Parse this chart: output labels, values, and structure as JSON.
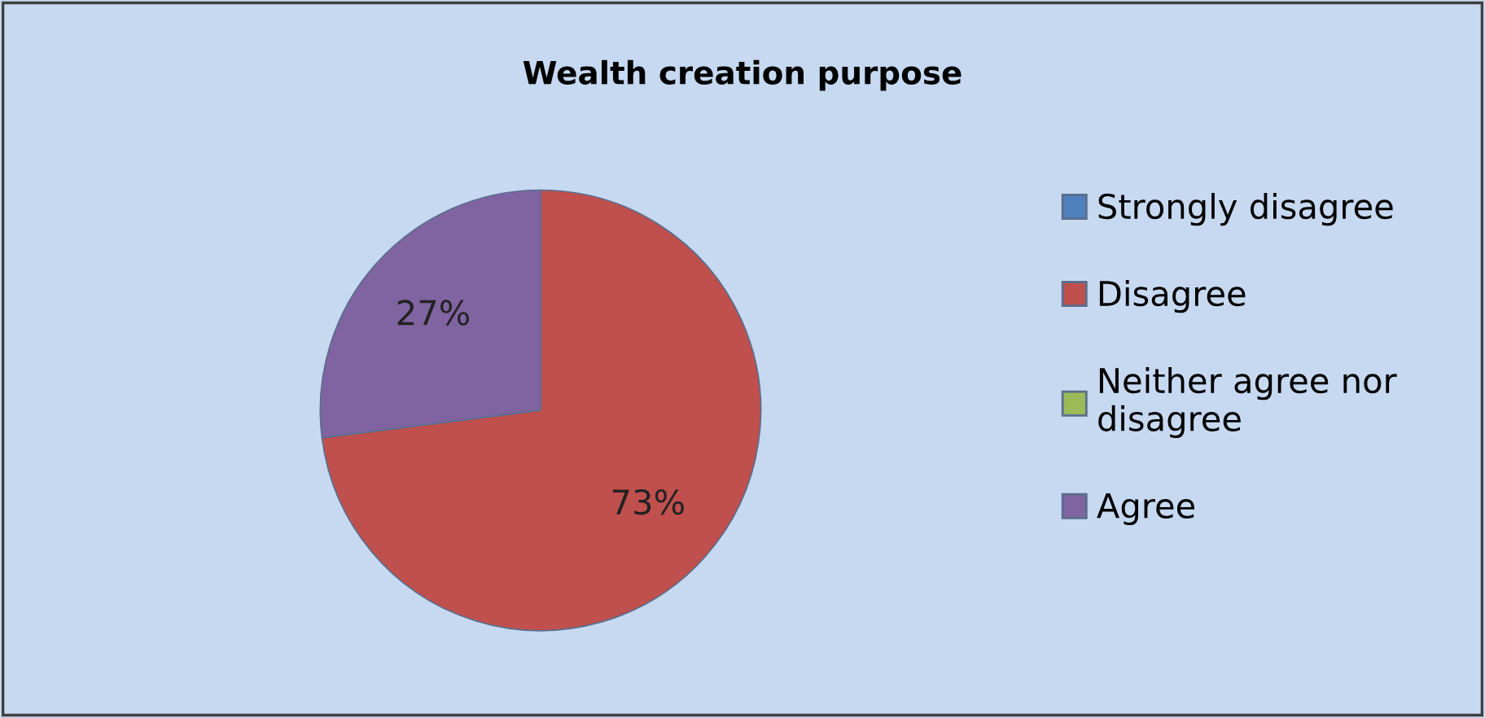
{
  "chart_data": {
    "type": "pie",
    "title": "Wealth creation purpose",
    "categories": [
      "Strongly disagree",
      "Disagree",
      "Neither agree nor disagree",
      "Agree"
    ],
    "values": [
      0,
      73,
      0,
      27
    ],
    "colors": [
      "#4f81bd",
      "#c0504d",
      "#9bbb59",
      "#8064a2"
    ],
    "value_labels": [
      null,
      "73%",
      null,
      "27%"
    ],
    "legend": "right"
  }
}
